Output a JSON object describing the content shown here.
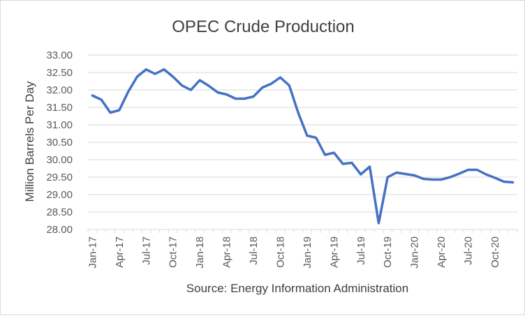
{
  "chart_data": {
    "type": "line",
    "title": "OPEC Crude Production",
    "xlabel": "Source: Energy Information Administration",
    "ylabel": "Million Barrels Per Day",
    "ylim": [
      28.0,
      33.0
    ],
    "y_ticks": [
      "28.00",
      "28.50",
      "29.00",
      "29.50",
      "30.00",
      "30.50",
      "31.00",
      "31.50",
      "32.00",
      "32.50",
      "33.00"
    ],
    "x_tick_labels": [
      "Jan-17",
      "Apr-17",
      "Jul-17",
      "Oct-17",
      "Jan-18",
      "Apr-18",
      "Jul-18",
      "Oct-18",
      "Jan-19",
      "Apr-19",
      "Jul-19",
      "Oct-19",
      "Jan-20",
      "Apr-20",
      "Jul-20",
      "Oct-20"
    ],
    "x": [
      "Jan-17",
      "Feb-17",
      "Mar-17",
      "Apr-17",
      "May-17",
      "Jun-17",
      "Jul-17",
      "Aug-17",
      "Sep-17",
      "Oct-17",
      "Nov-17",
      "Dec-17",
      "Jan-18",
      "Feb-18",
      "Mar-18",
      "Apr-18",
      "May-18",
      "Jun-18",
      "Jul-18",
      "Aug-18",
      "Sep-18",
      "Oct-18",
      "Nov-18",
      "Dec-18",
      "Jan-19",
      "Feb-19",
      "Mar-19",
      "Apr-19",
      "May-19",
      "Jun-19",
      "Jul-19",
      "Aug-19",
      "Sep-19",
      "Oct-19",
      "Nov-19",
      "Dec-19",
      "Jan-20",
      "Feb-20",
      "Mar-20",
      "Apr-20",
      "May-20",
      "Jun-20",
      "Jul-20",
      "Aug-20",
      "Sep-20",
      "Oct-20",
      "Nov-20",
      "Dec-20"
    ],
    "series": [
      {
        "values": [
          31.84,
          31.72,
          31.35,
          31.42,
          31.95,
          32.38,
          32.59,
          32.46,
          32.59,
          32.38,
          32.13,
          32.0,
          32.28,
          32.12,
          31.93,
          31.87,
          31.75,
          31.75,
          31.81,
          32.07,
          32.18,
          32.36,
          32.13,
          31.35,
          30.69,
          30.63,
          30.14,
          30.2,
          29.88,
          29.91,
          29.58,
          29.8,
          28.18,
          29.5,
          29.63,
          29.59,
          29.55,
          29.45,
          29.43,
          29.43,
          29.5,
          29.6,
          29.71,
          29.71,
          29.58,
          29.48,
          29.37,
          29.35
        ],
        "color": "#4472C4"
      }
    ],
    "grid": true,
    "legend": "none"
  }
}
